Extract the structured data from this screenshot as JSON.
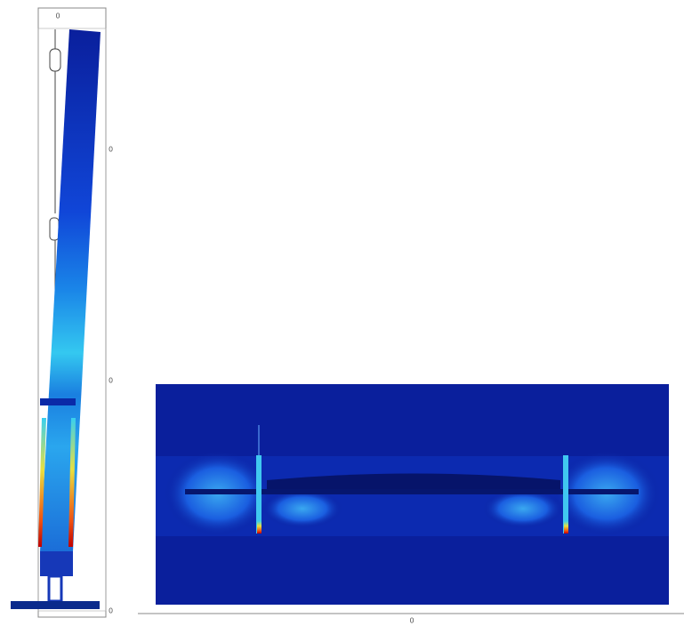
{
  "left_panel": {
    "top_label": "0",
    "side_labels": [
      "0",
      "0",
      "0"
    ]
  },
  "right_panel": {
    "bottom_label": "0"
  }
}
